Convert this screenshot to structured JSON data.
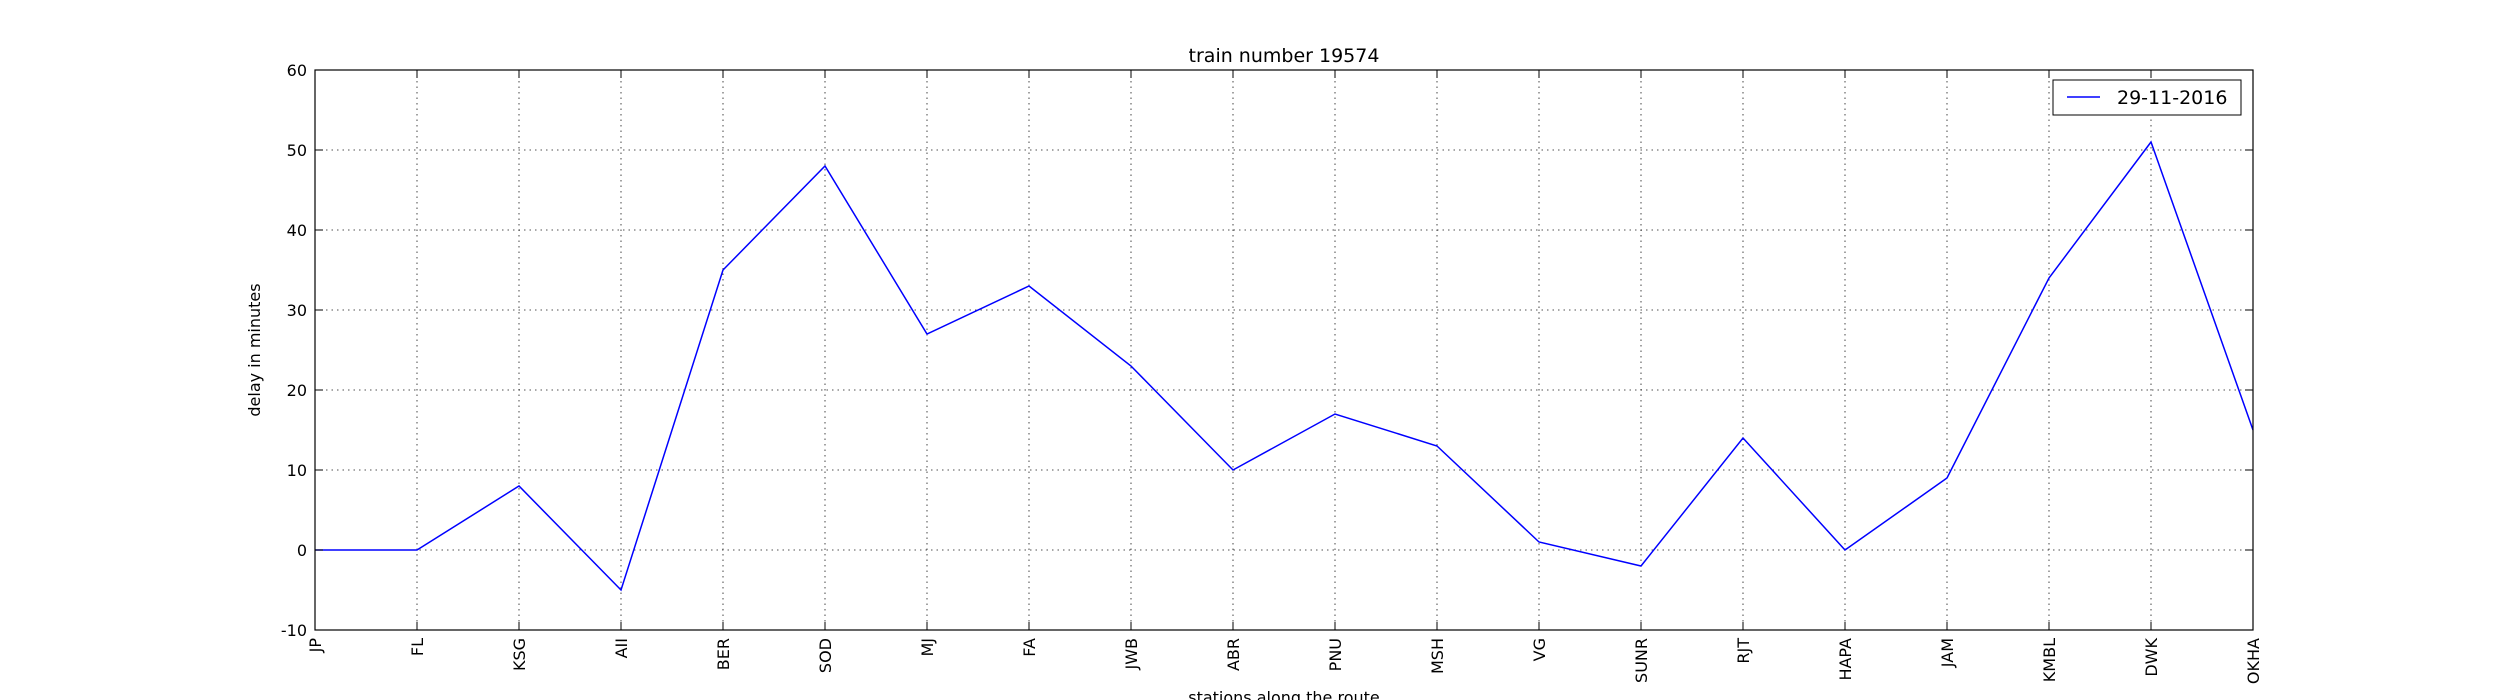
{
  "chart_data": {
    "type": "line",
    "title": "train number 19574",
    "xlabel": "stations along the route",
    "ylabel": "delay in minutes",
    "categories": [
      "JP",
      "FL",
      "KSG",
      "AII",
      "BER",
      "SOD",
      "MJ",
      "FA",
      "JWB",
      "ABR",
      "PNU",
      "MSH",
      "VG",
      "SUNR",
      "RJT",
      "HAPA",
      "JAM",
      "KMBL",
      "DWK",
      "OKHA"
    ],
    "series": [
      {
        "name": "29-11-2016",
        "color": "#0000ff",
        "values": [
          0,
          0,
          8,
          -5,
          35,
          48,
          27,
          33,
          23,
          10,
          17,
          13,
          1,
          -2,
          14,
          0,
          9,
          34,
          51,
          15
        ]
      }
    ],
    "ylim": [
      -10,
      60
    ],
    "yticks": [
      -10,
      0,
      10,
      20,
      30,
      40,
      50,
      60
    ],
    "grid": true,
    "legend_position": "top-right"
  }
}
